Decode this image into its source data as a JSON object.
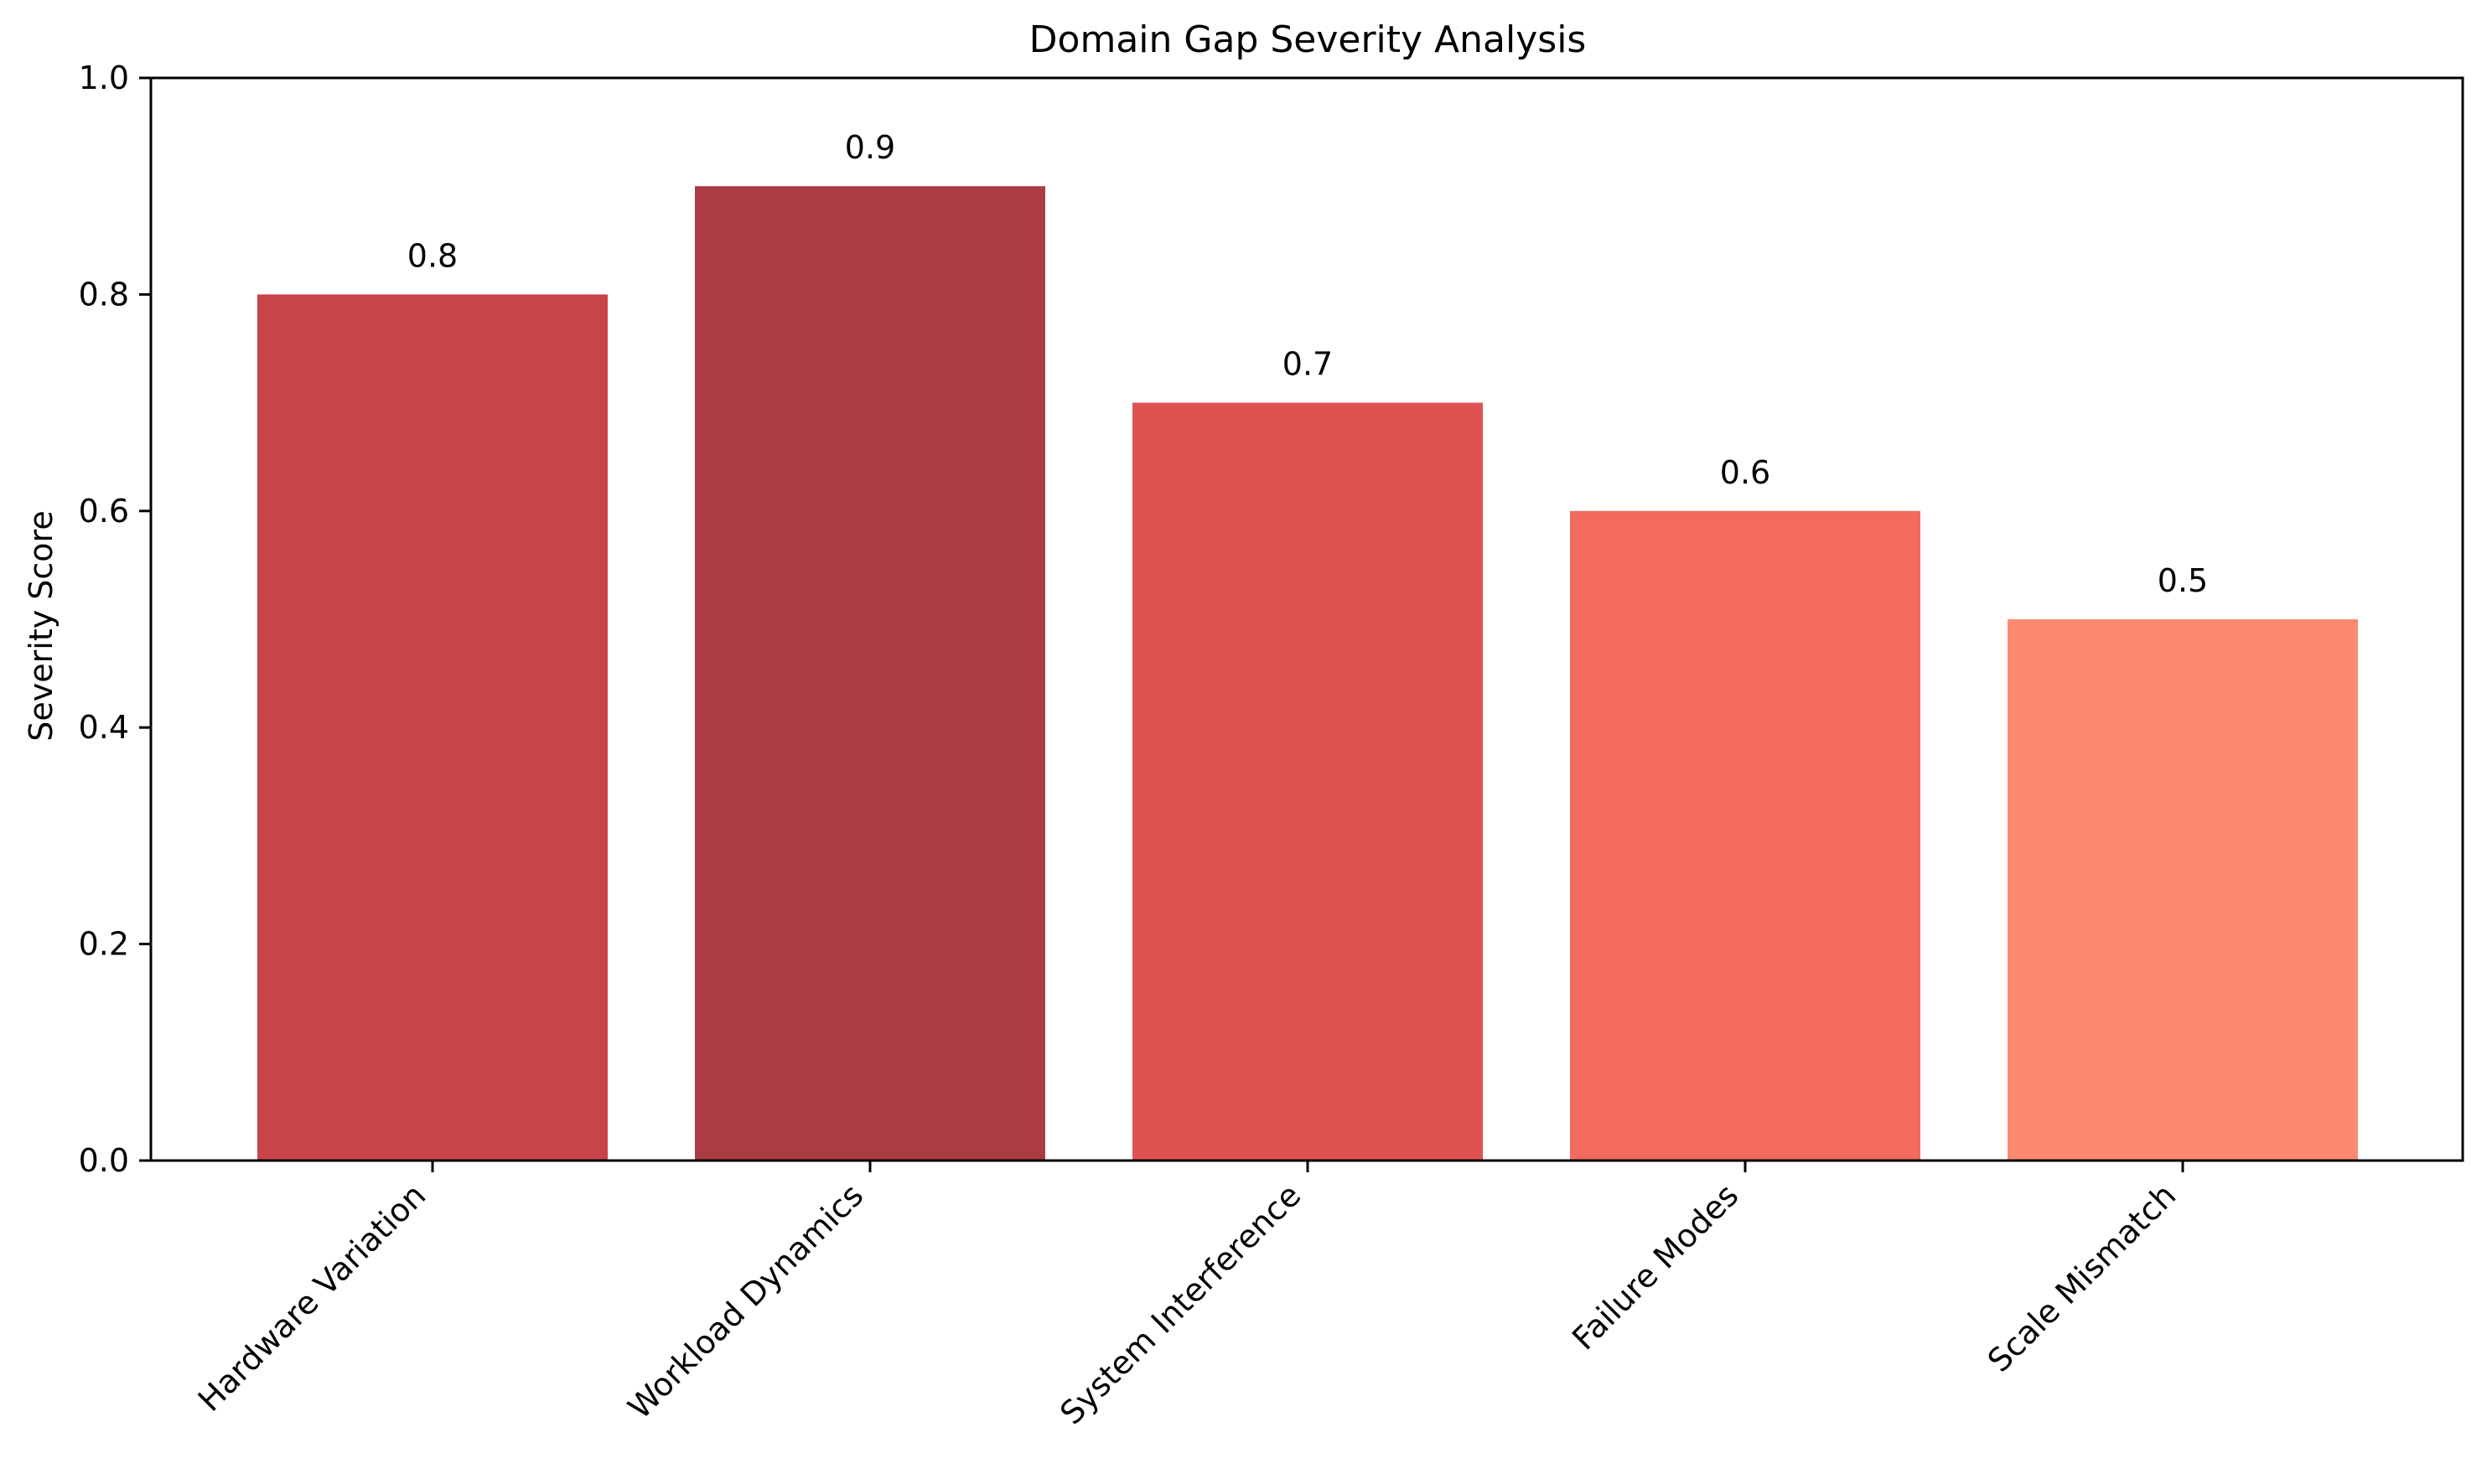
{
  "chart_data": {
    "type": "bar",
    "title": "Domain Gap Severity Analysis",
    "xlabel": "",
    "ylabel": "Severity Score",
    "categories": [
      "Hardware Variation",
      "Workload Dynamics",
      "System Interference",
      "Failure Modes",
      "Scale Mismatch"
    ],
    "values": [
      0.8,
      0.9,
      0.7,
      0.6,
      0.5
    ],
    "value_labels": [
      "0.8",
      "0.9",
      "0.7",
      "0.6",
      "0.5"
    ],
    "colors": [
      "#c9434a",
      "#ab3c44",
      "#e05252",
      "#f26b5e",
      "#fb8a71"
    ],
    "ylim": [
      0,
      1.0
    ],
    "yticks": [
      0.0,
      0.2,
      0.4,
      0.6,
      0.8,
      1.0
    ],
    "ytick_labels": [
      "0.0",
      "0.2",
      "0.4",
      "0.6",
      "0.8",
      "1.0"
    ],
    "grid": false,
    "legend": null
  }
}
